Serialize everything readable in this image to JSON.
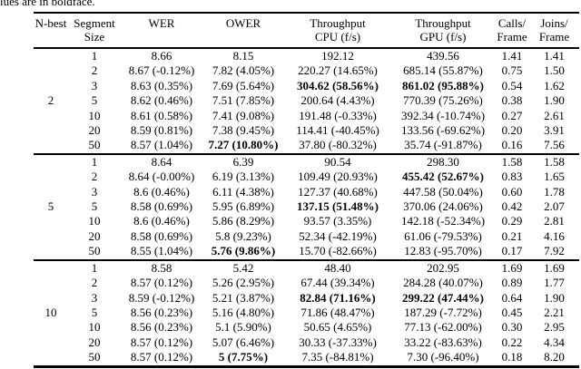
{
  "caption_fragment": "lues are in boldface.",
  "table": {
    "headers": [
      {
        "line1": "N-best",
        "line2": ""
      },
      {
        "line1": "Segment",
        "line2": "Size"
      },
      {
        "line1": "WER",
        "line2": ""
      },
      {
        "line1": "OWER",
        "line2": ""
      },
      {
        "line1": "Throughput",
        "line2": "CPU (f/s)"
      },
      {
        "line1": "Throughput",
        "line2": "GPU (f/s)"
      },
      {
        "line1": "Calls/",
        "line2": "Frame"
      },
      {
        "line1": "Joins/",
        "line2": "Frame"
      }
    ],
    "column_keys": [
      "size",
      "wer",
      "ower",
      "cpu",
      "gpu",
      "calls",
      "joins"
    ],
    "groups": [
      {
        "nbest": "2",
        "rows": [
          {
            "size": "1",
            "wer": "8.66",
            "ower": "8.15",
            "cpu": "192.12",
            "gpu": "439.56",
            "calls": "1.41",
            "joins": "1.41",
            "bold": []
          },
          {
            "size": "2",
            "wer": "8.67 (-0.12%)",
            "ower": "7.82 (4.05%)",
            "cpu": "220.27 (14.65%)",
            "gpu": "685.14 (55.87%)",
            "calls": "0.75",
            "joins": "1.50",
            "bold": []
          },
          {
            "size": "3",
            "wer": "8.63 (0.35%)",
            "ower": "7.69 (5.64%)",
            "cpu": "304.62 (58.56%)",
            "gpu": "861.02 (95.88%)",
            "calls": "0.54",
            "joins": "1.62",
            "bold": [
              "cpu",
              "gpu"
            ]
          },
          {
            "size": "5",
            "wer": "8.62 (0.46%)",
            "ower": "7.51 (7.85%)",
            "cpu": "200.64 (4.43%)",
            "gpu": "770.39 (75.26%)",
            "calls": "0.38",
            "joins": "1.90",
            "bold": []
          },
          {
            "size": "10",
            "wer": "8.61 (0.58%)",
            "ower": "7.41 (9.08%)",
            "cpu": "191.48 (-0.33%)",
            "gpu": "392.34 (-10.74%)",
            "calls": "0.27",
            "joins": "2.61",
            "bold": []
          },
          {
            "size": "20",
            "wer": "8.59 (0.81%)",
            "ower": "7.38 (9.45%)",
            "cpu": "114.41 (-40.45%)",
            "gpu": "133.56 (-69.62%)",
            "calls": "0.20",
            "joins": "3.91",
            "bold": []
          },
          {
            "size": "50",
            "wer": "8.57 (1.04%)",
            "ower": "7.27 (10.80%)",
            "cpu": "37.80 (-80.32%)",
            "gpu": "35.74 (-91.87%)",
            "calls": "0.16",
            "joins": "7.56",
            "bold": [
              "ower"
            ]
          }
        ]
      },
      {
        "nbest": "5",
        "rows": [
          {
            "size": "1",
            "wer": "8.64",
            "ower": "6.39",
            "cpu": "90.54",
            "gpu": "298.30",
            "calls": "1.58",
            "joins": "1.58",
            "bold": []
          },
          {
            "size": "2",
            "wer": "8.64 (-0.00%)",
            "ower": "6.19 (3.13%)",
            "cpu": "109.49 (20.93%)",
            "gpu": "455.42 (52.67%)",
            "calls": "0.83",
            "joins": "1.65",
            "bold": [
              "gpu"
            ]
          },
          {
            "size": "3",
            "wer": "8.6 (0.46%)",
            "ower": "6.11 (4.38%)",
            "cpu": "127.37 (40.68%)",
            "gpu": "447.58 (50.04%)",
            "calls": "0.60",
            "joins": "1.78",
            "bold": []
          },
          {
            "size": "5",
            "wer": "8.58 (0.69%)",
            "ower": "5.95 (6.89%)",
            "cpu": "137.15 (51.48%)",
            "gpu": "370.06 (24.06%)",
            "calls": "0.42",
            "joins": "2.07",
            "bold": [
              "cpu"
            ]
          },
          {
            "size": "10",
            "wer": "8.6 (0.46%)",
            "ower": "5.86 (8.29%)",
            "cpu": "93.57 (3.35%)",
            "gpu": "142.18 (-52.34%)",
            "calls": "0.29",
            "joins": "2.81",
            "bold": []
          },
          {
            "size": "20",
            "wer": "8.58 (0.69%)",
            "ower": "5.8 (9.23%)",
            "cpu": "52.34 (-42.19%)",
            "gpu": "61.06 (-79.53%)",
            "calls": "0.21",
            "joins": "4.16",
            "bold": []
          },
          {
            "size": "50",
            "wer": "8.55 (1.04%)",
            "ower": "5.76 (9.86%)",
            "cpu": "15.70 (-82.66%)",
            "gpu": "12.83 (-95.70%)",
            "calls": "0.17",
            "joins": "7.92",
            "bold": [
              "ower"
            ]
          }
        ]
      },
      {
        "nbest": "10",
        "rows": [
          {
            "size": "1",
            "wer": "8.58",
            "ower": "5.42",
            "cpu": "48.40",
            "gpu": "202.95",
            "calls": "1.69",
            "joins": "1.69",
            "bold": []
          },
          {
            "size": "2",
            "wer": "8.57 (0.12%)",
            "ower": "5.26 (2.95%)",
            "cpu": "67.44 (39.34%)",
            "gpu": "284.28 (40.07%)",
            "calls": "0.89",
            "joins": "1.77",
            "bold": []
          },
          {
            "size": "3",
            "wer": "8.59 (-0.12%)",
            "ower": "5.21 (3.87%)",
            "cpu": "82.84 (71.16%)",
            "gpu": "299.22 (47.44%)",
            "calls": "0.64",
            "joins": "1.90",
            "bold": [
              "cpu",
              "gpu"
            ]
          },
          {
            "size": "5",
            "wer": "8.56 (0.23%)",
            "ower": "5.16 (4.80%)",
            "cpu": "71.86 (48.47%)",
            "gpu": "187.29 (-7.72%)",
            "calls": "0.45",
            "joins": "2.21",
            "bold": []
          },
          {
            "size": "10",
            "wer": "8.56 (0.23%)",
            "ower": "5.1 (5.90%)",
            "cpu": "50.65 (4.65%)",
            "gpu": "77.13 (-62.00%)",
            "calls": "0.30",
            "joins": "2.95",
            "bold": []
          },
          {
            "size": "20",
            "wer": "8.57 (0.12%)",
            "ower": "5.07 (6.46%)",
            "cpu": "30.33 (-37.33%)",
            "gpu": "33.22 (-83.63%)",
            "calls": "0.22",
            "joins": "4.34",
            "bold": []
          },
          {
            "size": "50",
            "wer": "8.57 (0.12%)",
            "ower": "5 (7.75%)",
            "cpu": "7.35 (-84.81%)",
            "gpu": "7.30 (-96.40%)",
            "calls": "0.18",
            "joins": "8.20",
            "bold": [
              "ower"
            ]
          }
        ]
      }
    ]
  }
}
